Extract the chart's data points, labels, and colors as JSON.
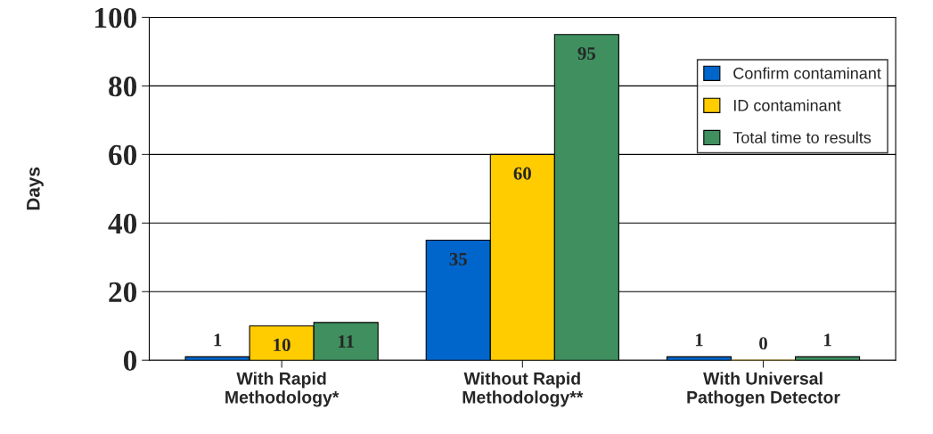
{
  "chart_data": {
    "type": "bar",
    "ylabel": "Days",
    "categories": [
      "With Rapid\nMethodology*",
      "Without Rapid\nMethodology**",
      "With Universal\nPathogen Detector"
    ],
    "series": [
      {
        "name": "Confirm contaminant",
        "color": "#0066cc",
        "values": [
          1,
          35,
          1
        ]
      },
      {
        "name": "ID contaminant",
        "color": "#ffcc00",
        "values": [
          10,
          60,
          0
        ]
      },
      {
        "name": "Total time to results",
        "color": "#3f8f5f",
        "values": [
          11,
          95,
          1
        ]
      }
    ],
    "ylim": [
      0,
      100
    ],
    "yticks": [
      0,
      20,
      40,
      60,
      80,
      100
    ],
    "grid": "y",
    "legend": "top right",
    "data_labels": true
  }
}
